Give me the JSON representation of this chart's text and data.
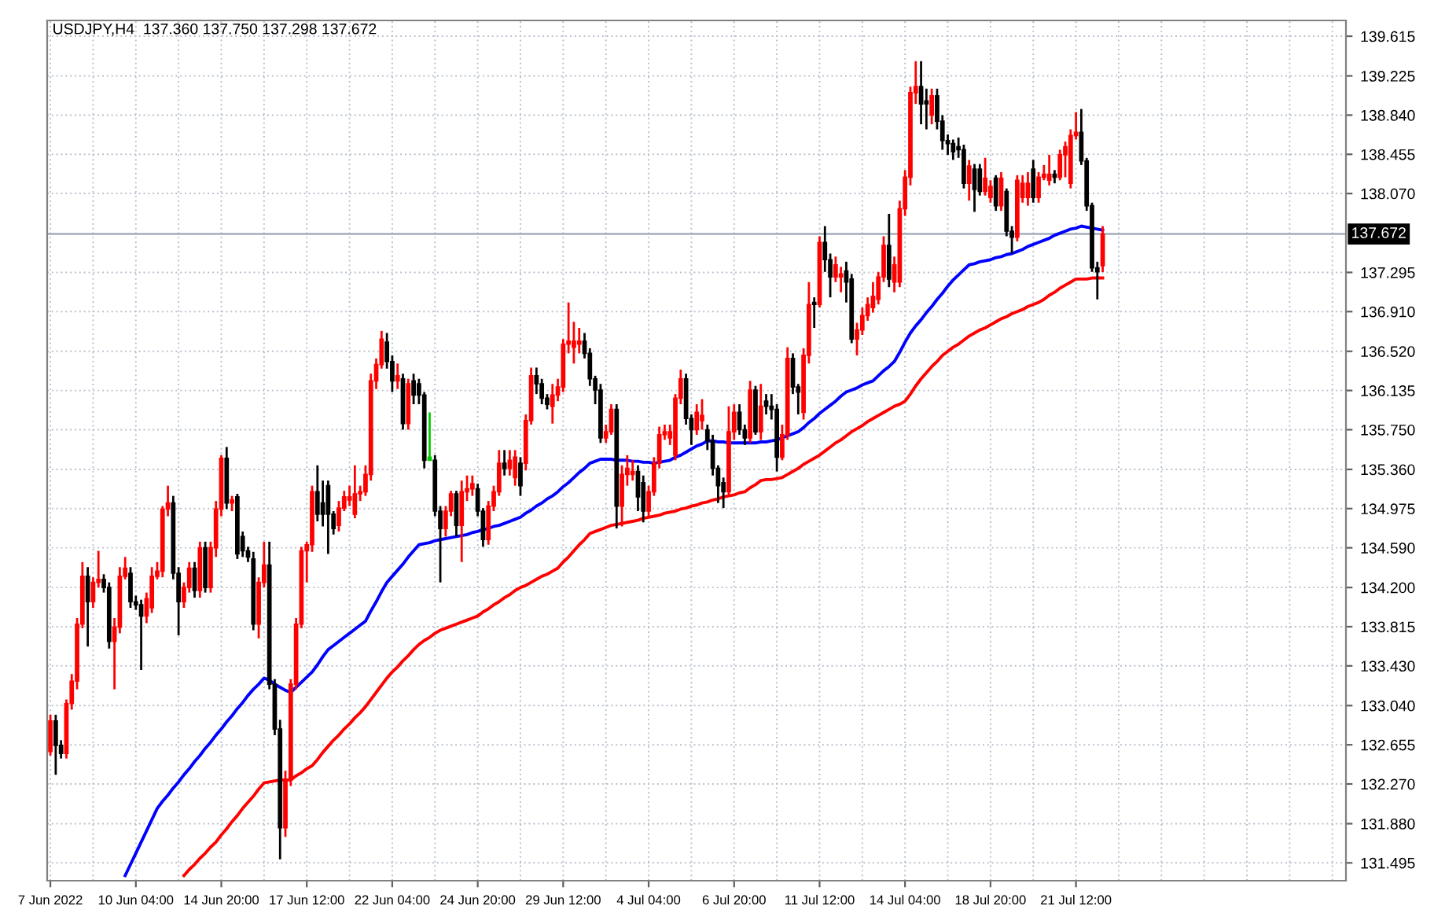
{
  "chart_data": {
    "type": "candlestick",
    "title": "USDJPY,H4  137.360 137.750 137.298 137.672",
    "categories": [
      "7 Jun 2022",
      null,
      null,
      null,
      null,
      null,
      null,
      null,
      null,
      null,
      null,
      null,
      null,
      null,
      null,
      null,
      "10 Jun 04:00",
      null,
      null,
      null,
      null,
      null,
      null,
      null,
      null,
      null,
      null,
      null,
      null,
      null,
      null,
      null,
      "14 Jun 20:00",
      null,
      null,
      null,
      null,
      null,
      null,
      null,
      null,
      null,
      null,
      null,
      null,
      null,
      null,
      null,
      "17 Jun 12:00",
      null,
      null,
      null,
      null,
      null,
      null,
      null,
      null,
      null,
      null,
      null,
      null,
      null,
      null,
      null,
      "22 Jun 04:00",
      null,
      null,
      null,
      null,
      null,
      null,
      null,
      null,
      null,
      null,
      null,
      null,
      null,
      null,
      null,
      "24 Jun 20:00",
      null,
      null,
      null,
      null,
      null,
      null,
      null,
      null,
      null,
      null,
      null,
      null,
      null,
      null,
      null,
      "29 Jun 12:00",
      null,
      null,
      null,
      null,
      null,
      null,
      null,
      null,
      null,
      null,
      null,
      null,
      null,
      null,
      null,
      "4 Jul 04:00",
      null,
      null,
      null,
      null,
      null,
      null,
      null,
      null,
      null,
      null,
      null,
      null,
      null,
      null,
      null,
      "6 Jul 20:00",
      null,
      null,
      null,
      null,
      null,
      null,
      null,
      null,
      null,
      null,
      null,
      null,
      null,
      null,
      null,
      "11 Jul 12:00",
      null,
      null,
      null,
      null,
      null,
      null,
      null,
      null,
      null,
      null,
      null,
      null,
      null,
      null,
      null,
      "14 Jul 04:00",
      null,
      null,
      null,
      null,
      null,
      null,
      null,
      null,
      null,
      null,
      null,
      null,
      null,
      null,
      null,
      "18 Jul 20:00",
      null,
      null,
      null,
      null,
      null,
      null,
      null,
      null,
      null,
      null,
      null,
      null,
      null,
      null,
      null,
      "21 Jul 12:00",
      null,
      null,
      null,
      null,
      null
    ],
    "ohlc": [
      [
        132.59,
        132.95,
        132.55,
        132.89
      ],
      [
        132.89,
        132.95,
        132.36,
        132.65
      ],
      [
        132.65,
        132.7,
        132.52,
        132.57
      ],
      [
        132.57,
        133.1,
        132.52,
        133.06
      ],
      [
        133.06,
        133.35,
        133.0,
        133.28
      ],
      [
        133.28,
        133.9,
        133.2,
        133.84
      ],
      [
        133.84,
        134.45,
        133.8,
        134.31
      ],
      [
        134.31,
        134.4,
        133.62,
        134.06
      ],
      [
        134.06,
        134.3,
        134.0,
        134.25
      ],
      [
        134.25,
        134.56,
        134.2,
        134.28
      ],
      [
        134.28,
        134.33,
        134.15,
        134.2
      ],
      [
        134.2,
        134.25,
        133.6,
        133.67
      ],
      [
        133.67,
        133.9,
        133.2,
        133.81
      ],
      [
        133.81,
        134.4,
        133.75,
        134.31
      ],
      [
        134.31,
        134.5,
        134.28,
        134.39
      ],
      [
        134.34,
        134.4,
        134.0,
        134.06
      ],
      [
        134.06,
        134.12,
        133.98,
        134.03
      ],
      [
        134.03,
        134.08,
        133.39,
        133.92
      ],
      [
        133.92,
        134.15,
        133.85,
        134.09
      ],
      [
        134.0,
        134.4,
        133.95,
        134.31
      ],
      [
        134.31,
        134.45,
        134.28,
        134.36
      ],
      [
        134.36,
        135.0,
        134.3,
        134.97
      ],
      [
        134.97,
        135.2,
        134.9,
        135.03
      ],
      [
        135.03,
        135.1,
        134.28,
        134.34
      ],
      [
        134.34,
        134.4,
        133.73,
        134.06
      ],
      [
        134.06,
        134.25,
        134.0,
        134.2
      ],
      [
        134.2,
        134.45,
        134.15,
        134.39
      ],
      [
        134.39,
        134.45,
        134.1,
        134.17
      ],
      [
        134.17,
        134.65,
        134.1,
        134.59
      ],
      [
        134.59,
        134.65,
        134.15,
        134.2
      ],
      [
        134.2,
        134.65,
        134.15,
        134.59
      ],
      [
        134.59,
        135.05,
        134.5,
        134.97
      ],
      [
        134.97,
        135.5,
        134.9,
        135.47
      ],
      [
        135.47,
        135.58,
        134.97,
        135.03
      ],
      [
        135.03,
        135.1,
        134.95,
        135.06
      ],
      [
        135.09,
        135.12,
        134.48,
        134.53
      ],
      [
        134.7,
        134.75,
        134.5,
        134.56
      ],
      [
        134.56,
        134.6,
        134.45,
        134.5
      ],
      [
        134.48,
        134.55,
        133.78,
        133.84
      ],
      [
        133.84,
        134.3,
        133.7,
        134.25
      ],
      [
        134.25,
        134.65,
        134.2,
        134.42
      ],
      [
        134.42,
        134.65,
        133.2,
        133.25
      ],
      [
        133.25,
        133.3,
        132.75,
        132.81
      ],
      [
        132.81,
        132.9,
        131.53,
        131.84
      ],
      [
        131.84,
        132.4,
        131.75,
        132.31
      ],
      [
        132.31,
        133.3,
        132.25,
        133.25
      ],
      [
        133.25,
        133.9,
        133.2,
        133.84
      ],
      [
        133.84,
        134.6,
        133.8,
        134.56
      ],
      [
        134.56,
        134.65,
        134.25,
        134.62
      ],
      [
        134.62,
        135.2,
        134.55,
        135.14
      ],
      [
        135.14,
        135.4,
        134.85,
        134.92
      ],
      [
        135.03,
        135.25,
        134.8,
        134.92
      ],
      [
        135.2,
        135.25,
        134.53,
        134.92
      ],
      [
        134.92,
        134.95,
        134.72,
        134.78
      ],
      [
        134.81,
        135.05,
        134.75,
        134.98
      ],
      [
        134.98,
        135.15,
        134.95,
        135.09
      ],
      [
        135.06,
        135.2,
        135.0,
        135.09
      ],
      [
        134.92,
        135.4,
        134.88,
        135.12
      ],
      [
        135.12,
        135.2,
        135.05,
        135.14
      ],
      [
        135.14,
        135.4,
        135.1,
        135.31
      ],
      [
        135.31,
        136.3,
        135.25,
        136.23
      ],
      [
        136.23,
        136.45,
        136.15,
        136.39
      ],
      [
        136.39,
        136.72,
        136.35,
        136.64
      ],
      [
        136.61,
        136.7,
        136.35,
        136.42
      ],
      [
        136.42,
        136.48,
        136.12,
        136.23
      ],
      [
        136.23,
        136.4,
        136.15,
        136.28
      ],
      [
        136.25,
        136.3,
        135.75,
        135.81
      ],
      [
        135.81,
        136.25,
        135.75,
        136.2
      ],
      [
        136.23,
        136.3,
        136.0,
        136.09
      ],
      [
        136.2,
        136.25,
        136.0,
        136.09
      ],
      [
        136.09,
        136.12,
        135.37,
        135.45
      ],
      [
        135.45,
        135.92,
        135.45,
        135.48
      ],
      [
        135.45,
        135.5,
        134.9,
        134.95
      ],
      [
        134.95,
        135.0,
        134.25,
        134.78
      ],
      [
        134.78,
        135.0,
        134.7,
        134.95
      ],
      [
        134.95,
        135.15,
        134.9,
        135.12
      ],
      [
        135.12,
        135.15,
        134.7,
        134.81
      ],
      [
        134.81,
        135.25,
        134.45,
        135.14
      ],
      [
        135.14,
        135.3,
        135.05,
        135.17
      ],
      [
        135.17,
        135.3,
        135.1,
        135.22
      ],
      [
        135.17,
        135.22,
        134.9,
        134.95
      ],
      [
        134.95,
        134.98,
        134.6,
        134.67
      ],
      [
        134.67,
        135.05,
        134.62,
        135.0
      ],
      [
        135.0,
        135.2,
        134.95,
        135.14
      ],
      [
        135.14,
        135.55,
        135.1,
        135.42
      ],
      [
        135.42,
        135.55,
        135.3,
        135.37
      ],
      [
        135.37,
        135.55,
        135.3,
        135.45
      ],
      [
        135.28,
        135.55,
        135.2,
        135.48
      ],
      [
        135.42,
        135.48,
        135.1,
        135.2
      ],
      [
        135.42,
        135.9,
        135.35,
        135.84
      ],
      [
        135.84,
        136.36,
        135.8,
        136.28
      ],
      [
        136.28,
        136.36,
        136.1,
        136.2
      ],
      [
        136.2,
        136.25,
        136.0,
        136.06
      ],
      [
        136.06,
        136.1,
        135.95,
        136.0
      ],
      [
        135.98,
        136.2,
        135.81,
        136.09
      ],
      [
        136.09,
        136.25,
        136.03,
        136.17
      ],
      [
        136.17,
        136.64,
        136.12,
        136.59
      ],
      [
        136.59,
        137.0,
        136.5,
        136.62
      ],
      [
        136.56,
        136.81,
        136.4,
        136.62
      ],
      [
        136.59,
        136.75,
        136.5,
        136.62
      ],
      [
        136.62,
        136.7,
        136.45,
        136.5
      ],
      [
        136.5,
        136.55,
        136.18,
        136.25
      ],
      [
        136.25,
        136.28,
        136.0,
        136.14
      ],
      [
        136.14,
        136.2,
        135.62,
        135.67
      ],
      [
        135.67,
        135.8,
        135.62,
        135.73
      ],
      [
        135.73,
        136.0,
        135.7,
        135.95
      ],
      [
        135.95,
        136.0,
        134.78,
        135.0
      ],
      [
        135.0,
        135.4,
        134.8,
        135.31
      ],
      [
        135.31,
        135.5,
        135.2,
        135.37
      ],
      [
        135.31,
        135.45,
        135.25,
        135.34
      ],
      [
        135.34,
        135.4,
        134.95,
        135.09
      ],
      [
        135.23,
        135.3,
        134.84,
        134.95
      ],
      [
        134.95,
        135.2,
        134.9,
        135.14
      ],
      [
        135.14,
        135.48,
        135.1,
        135.42
      ],
      [
        135.42,
        135.78,
        135.37,
        135.7
      ],
      [
        135.7,
        135.8,
        135.65,
        135.73
      ],
      [
        135.67,
        135.8,
        135.6,
        135.73
      ],
      [
        135.5,
        136.1,
        135.45,
        136.06
      ],
      [
        136.06,
        136.34,
        136.0,
        136.25
      ],
      [
        136.25,
        136.3,
        135.8,
        135.86
      ],
      [
        135.86,
        135.9,
        135.6,
        135.75
      ],
      [
        135.75,
        136.0,
        135.7,
        135.92
      ],
      [
        135.84,
        136.05,
        135.75,
        135.89
      ],
      [
        135.75,
        135.8,
        135.55,
        135.64
      ],
      [
        135.64,
        135.7,
        135.3,
        135.37
      ],
      [
        135.37,
        135.4,
        135.03,
        135.2
      ],
      [
        135.23,
        135.28,
        134.98,
        135.14
      ],
      [
        135.14,
        135.98,
        135.1,
        135.73
      ],
      [
        135.73,
        136.0,
        135.65,
        135.92
      ],
      [
        135.92,
        136.0,
        135.7,
        135.75
      ],
      [
        135.75,
        135.8,
        135.6,
        135.67
      ],
      [
        135.67,
        136.23,
        135.62,
        136.14
      ],
      [
        136.14,
        136.18,
        135.7,
        135.73
      ],
      [
        135.73,
        136.2,
        135.65,
        135.98
      ],
      [
        136.03,
        136.1,
        135.9,
        135.98
      ],
      [
        135.98,
        136.1,
        135.85,
        135.95
      ],
      [
        135.95,
        136.0,
        135.34,
        135.48
      ],
      [
        135.48,
        135.8,
        135.45,
        135.7
      ],
      [
        135.7,
        136.56,
        135.65,
        136.45
      ],
      [
        136.45,
        136.5,
        136.1,
        136.17
      ],
      [
        136.17,
        136.2,
        135.9,
        136.12
      ],
      [
        135.92,
        136.55,
        135.85,
        136.48
      ],
      [
        136.48,
        137.2,
        136.4,
        136.98
      ],
      [
        137.0,
        137.05,
        136.75,
        136.98
      ],
      [
        136.98,
        137.65,
        136.95,
        137.59
      ],
      [
        137.59,
        137.75,
        137.3,
        137.42
      ],
      [
        137.42,
        137.48,
        137.05,
        137.25
      ],
      [
        137.25,
        137.45,
        137.2,
        137.37
      ],
      [
        137.25,
        137.35,
        137.1,
        137.28
      ],
      [
        137.31,
        137.4,
        137.0,
        137.2
      ],
      [
        137.23,
        137.28,
        136.6,
        136.64
      ],
      [
        136.64,
        136.8,
        136.48,
        136.73
      ],
      [
        136.73,
        136.95,
        136.68,
        136.87
      ],
      [
        136.87,
        137.05,
        136.82,
        136.98
      ],
      [
        136.95,
        137.2,
        136.9,
        137.06
      ],
      [
        137.03,
        137.3,
        136.98,
        137.25
      ],
      [
        137.25,
        137.65,
        137.2,
        137.56
      ],
      [
        137.56,
        137.87,
        137.15,
        137.23
      ],
      [
        137.2,
        137.45,
        137.1,
        137.37
      ],
      [
        137.2,
        138.0,
        137.15,
        137.92
      ],
      [
        137.92,
        138.3,
        137.85,
        138.23
      ],
      [
        138.23,
        139.12,
        138.15,
        139.06
      ],
      [
        139.06,
        139.37,
        138.95,
        139.12
      ],
      [
        139.12,
        139.37,
        138.75,
        138.95
      ],
      [
        138.98,
        139.1,
        138.7,
        138.95
      ],
      [
        138.84,
        139.1,
        138.75,
        139.03
      ],
      [
        139.03,
        139.1,
        138.7,
        138.78
      ],
      [
        138.78,
        138.84,
        138.5,
        138.59
      ],
      [
        138.59,
        138.65,
        138.45,
        138.56
      ],
      [
        138.56,
        138.6,
        138.4,
        138.48
      ],
      [
        138.53,
        138.62,
        138.42,
        138.5
      ],
      [
        138.5,
        138.55,
        138.12,
        138.17
      ],
      [
        138.17,
        138.4,
        138.0,
        138.34
      ],
      [
        138.31,
        138.36,
        137.89,
        138.11
      ],
      [
        138.31,
        138.36,
        138.05,
        138.09
      ],
      [
        138.09,
        138.42,
        138.05,
        138.22
      ],
      [
        138.03,
        138.2,
        137.98,
        138.14
      ],
      [
        138.22,
        138.25,
        137.9,
        137.95
      ],
      [
        137.95,
        138.28,
        137.9,
        138.22
      ],
      [
        138.09,
        138.12,
        137.65,
        137.7
      ],
      [
        137.7,
        137.75,
        137.48,
        137.64
      ],
      [
        137.64,
        138.25,
        137.6,
        138.2
      ],
      [
        138.03,
        138.25,
        137.98,
        138.17
      ],
      [
        138.03,
        138.28,
        137.95,
        138.17
      ],
      [
        138.31,
        138.4,
        137.98,
        138.03
      ],
      [
        138.03,
        138.28,
        137.98,
        138.23
      ],
      [
        138.23,
        138.35,
        138.2,
        138.26
      ],
      [
        138.2,
        138.45,
        138.15,
        138.26
      ],
      [
        138.26,
        138.3,
        138.17,
        138.23
      ],
      [
        138.23,
        138.5,
        138.2,
        138.45
      ],
      [
        138.45,
        138.58,
        138.23,
        138.53
      ],
      [
        138.17,
        138.7,
        138.12,
        138.64
      ],
      [
        138.64,
        138.87,
        138.6,
        138.67
      ],
      [
        138.67,
        138.9,
        138.35,
        138.39
      ],
      [
        138.39,
        138.42,
        137.9,
        137.95
      ],
      [
        137.95,
        137.98,
        137.3,
        137.34
      ],
      [
        137.34,
        137.4,
        137.03,
        137.3
      ],
      [
        137.36,
        137.75,
        137.298,
        137.672
      ]
    ],
    "colors": [
      "#ff0000",
      "#000000",
      "#000000",
      "#ff0000",
      "#ff0000",
      "#ff0000",
      "#ff0000",
      "#000000",
      "#ff0000",
      "#ff0000",
      "#000000",
      "#000000",
      "#ff0000",
      "#ff0000",
      "#ff0000",
      "#000000",
      "#000000",
      "#000000",
      "#ff0000",
      "#ff0000",
      "#ff0000",
      "#ff0000",
      "#ff0000",
      "#000000",
      "#000000",
      "#ff0000",
      "#ff0000",
      "#000000",
      "#ff0000",
      "#000000",
      "#ff0000",
      "#ff0000",
      "#ff0000",
      "#000000",
      "#ff0000",
      "#000000",
      "#000000",
      "#000000",
      "#000000",
      "#ff0000",
      "#ff0000",
      "#000000",
      "#000000",
      "#000000",
      "#ff0000",
      "#ff0000",
      "#ff0000",
      "#ff0000",
      "#ff0000",
      "#ff0000",
      "#000000",
      "#000000",
      "#000000",
      "#000000",
      "#ff0000",
      "#ff0000",
      "#ff0000",
      "#ff0000",
      "#ff0000",
      "#ff0000",
      "#ff0000",
      "#ff0000",
      "#ff0000",
      "#000000",
      "#000000",
      "#ff0000",
      "#000000",
      "#ff0000",
      "#000000",
      "#000000",
      "#000000",
      "#00cc00",
      "#000000",
      "#000000",
      "#ff0000",
      "#ff0000",
      "#000000",
      "#ff0000",
      "#ff0000",
      "#ff0000",
      "#000000",
      "#000000",
      "#ff0000",
      "#ff0000",
      "#ff0000",
      "#000000",
      "#ff0000",
      "#ff0000",
      "#000000",
      "#ff0000",
      "#ff0000",
      "#000000",
      "#000000",
      "#000000",
      "#ff0000",
      "#ff0000",
      "#ff0000",
      "#ff0000",
      "#ff0000",
      "#ff0000",
      "#000000",
      "#000000",
      "#000000",
      "#000000",
      "#ff0000",
      "#ff0000",
      "#000000",
      "#ff0000",
      "#ff0000",
      "#ff0000",
      "#000000",
      "#000000",
      "#ff0000",
      "#ff0000",
      "#ff0000",
      "#ff0000",
      "#ff0000",
      "#ff0000",
      "#ff0000",
      "#000000",
      "#000000",
      "#ff0000",
      "#ff0000",
      "#000000",
      "#000000",
      "#000000",
      "#000000",
      "#ff0000",
      "#ff0000",
      "#000000",
      "#000000",
      "#ff0000",
      "#000000",
      "#ff0000",
      "#000000",
      "#000000",
      "#000000",
      "#ff0000",
      "#ff0000",
      "#000000",
      "#000000",
      "#ff0000",
      "#ff0000",
      "#000000",
      "#ff0000",
      "#000000",
      "#000000",
      "#ff0000",
      "#ff0000",
      "#000000",
      "#000000",
      "#ff0000",
      "#ff0000",
      "#ff0000",
      "#ff0000",
      "#ff0000",
      "#ff0000",
      "#000000",
      "#ff0000",
      "#ff0000",
      "#ff0000",
      "#ff0000",
      "#ff0000",
      "#000000",
      "#000000",
      "#ff0000",
      "#000000",
      "#000000",
      "#000000",
      "#000000",
      "#000000",
      "#000000",
      "#ff0000",
      "#000000",
      "#000000",
      "#ff0000",
      "#ff0000",
      "#000000",
      "#ff0000",
      "#000000",
      "#000000",
      "#ff0000",
      "#ff0000",
      "#ff0000",
      "#000000",
      "#ff0000",
      "#ff0000",
      "#ff0000",
      "#000000",
      "#ff0000",
      "#ff0000",
      "#ff0000",
      "#ff0000",
      "#000000",
      "#000000",
      "#000000",
      "#000000",
      "#ff0000"
    ],
    "series": [
      {
        "type": "line",
        "color": "#0000ff",
        "values": [
          null,
          null,
          null,
          null,
          null,
          null,
          null,
          null,
          null,
          null,
          null,
          null,
          null,
          null,
          131.37,
          131.48,
          131.59,
          131.7,
          131.81,
          131.92,
          132.03,
          132.1,
          132.16,
          132.23,
          132.29,
          132.36,
          132.42,
          132.49,
          132.55,
          132.62,
          132.68,
          132.75,
          132.81,
          132.88,
          132.94,
          133.01,
          133.07,
          133.14,
          133.2,
          133.25,
          133.31,
          133.29,
          133.25,
          133.22,
          133.19,
          133.17,
          133.22,
          133.27,
          133.32,
          133.37,
          133.44,
          133.52,
          133.59,
          133.63,
          133.67,
          133.71,
          133.75,
          133.79,
          133.83,
          133.87,
          133.97,
          134.06,
          134.16,
          134.25,
          134.31,
          134.37,
          134.43,
          134.5,
          134.56,
          134.62,
          134.63,
          134.64,
          134.66,
          134.67,
          134.68,
          134.69,
          134.7,
          134.71,
          134.72,
          134.74,
          134.75,
          134.77,
          134.78,
          134.8,
          134.81,
          134.83,
          134.85,
          134.87,
          134.89,
          134.93,
          134.96,
          135.0,
          135.03,
          135.07,
          135.1,
          135.14,
          135.19,
          135.23,
          135.28,
          135.33,
          135.37,
          135.42,
          135.44,
          135.46,
          135.46,
          135.46,
          135.45,
          135.45,
          135.45,
          135.44,
          135.44,
          135.43,
          135.43,
          135.42,
          135.43,
          135.44,
          135.45,
          135.48,
          135.5,
          135.53,
          135.56,
          135.59,
          135.61,
          135.64,
          135.64,
          135.63,
          135.63,
          135.62,
          135.62,
          135.62,
          135.62,
          135.62,
          135.62,
          135.63,
          135.63,
          135.64,
          135.65,
          135.67,
          135.69,
          135.71,
          135.73,
          135.77,
          135.82,
          135.86,
          135.91,
          135.95,
          135.99,
          136.03,
          136.08,
          136.12,
          136.14,
          136.16,
          136.19,
          136.21,
          136.23,
          136.28,
          136.33,
          136.37,
          136.42,
          136.51,
          136.61,
          136.7,
          136.77,
          136.83,
          136.9,
          136.96,
          137.03,
          137.09,
          137.16,
          137.22,
          137.27,
          137.32,
          137.37,
          137.38,
          137.4,
          137.41,
          137.42,
          137.44,
          137.45,
          137.47,
          137.48,
          137.5,
          137.52,
          137.55,
          137.57,
          137.59,
          137.61,
          137.63,
          137.66,
          137.68,
          137.7,
          137.72,
          137.73,
          137.75,
          137.74,
          137.73,
          137.72,
          137.71
        ]
      },
      {
        "type": "line",
        "color": "#ff0000",
        "values": [
          null,
          null,
          null,
          null,
          null,
          null,
          null,
          null,
          null,
          null,
          null,
          null,
          null,
          null,
          null,
          null,
          null,
          null,
          null,
          null,
          null,
          null,
          null,
          null,
          null,
          131.37,
          131.43,
          131.48,
          131.54,
          131.59,
          131.65,
          131.7,
          131.77,
          131.83,
          131.9,
          131.96,
          132.03,
          132.09,
          132.15,
          132.22,
          132.28,
          132.29,
          132.3,
          132.31,
          132.31,
          132.31,
          132.35,
          132.38,
          132.42,
          132.45,
          132.51,
          132.58,
          132.64,
          132.7,
          132.75,
          132.81,
          132.86,
          132.92,
          132.97,
          133.03,
          133.1,
          133.17,
          133.24,
          133.31,
          133.37,
          133.42,
          133.48,
          133.53,
          133.59,
          133.64,
          133.68,
          133.71,
          133.75,
          133.78,
          133.8,
          133.82,
          133.84,
          133.86,
          133.88,
          133.9,
          133.92,
          133.96,
          133.99,
          134.03,
          134.06,
          134.1,
          134.13,
          134.17,
          134.2,
          134.22,
          134.25,
          134.28,
          134.31,
          134.33,
          134.36,
          134.39,
          134.45,
          134.5,
          134.56,
          134.62,
          134.67,
          134.73,
          134.75,
          134.77,
          134.79,
          134.81,
          134.82,
          134.83,
          134.84,
          134.85,
          134.86,
          134.88,
          134.89,
          134.9,
          134.91,
          134.93,
          134.94,
          134.95,
          134.97,
          134.98,
          135.0,
          135.01,
          135.03,
          135.04,
          135.06,
          135.07,
          135.09,
          135.1,
          135.11,
          135.13,
          135.14,
          135.18,
          135.21,
          135.25,
          135.26,
          135.26,
          135.27,
          135.28,
          135.31,
          135.34,
          135.37,
          135.41,
          135.44,
          135.47,
          135.5,
          135.54,
          135.58,
          135.62,
          135.65,
          135.69,
          135.73,
          135.76,
          135.79,
          135.83,
          135.86,
          135.89,
          135.92,
          135.95,
          135.98,
          136.0,
          136.03,
          136.1,
          136.18,
          136.25,
          136.31,
          136.37,
          136.42,
          136.48,
          136.52,
          136.56,
          136.59,
          136.63,
          136.67,
          136.7,
          136.73,
          136.75,
          136.78,
          136.81,
          136.84,
          136.86,
          136.89,
          136.91,
          136.93,
          136.96,
          136.98,
          137.0,
          137.03,
          137.07,
          137.1,
          137.14,
          137.17,
          137.2,
          137.23,
          137.23,
          137.23,
          137.24,
          137.24,
          137.24
        ]
      }
    ],
    "ylim": [
      131.32,
      139.77
    ],
    "yticks": [
      139.615,
      139.225,
      {
        "value": 138.84,
        "label": "138.840"
      },
      138.455,
      {
        "value": 138.07,
        "label": "138.070"
      },
      137.295,
      {
        "value": 136.91,
        "label": "136.910"
      },
      {
        "value": 136.52,
        "label": "136.520"
      },
      136.135,
      {
        "value": 135.75,
        "label": "135.750"
      },
      {
        "value": 135.36,
        "label": "135.360"
      },
      134.975,
      {
        "value": 134.59,
        "label": "134.590"
      },
      {
        "value": 134.2,
        "label": "134.200"
      },
      133.815,
      {
        "value": 133.43,
        "label": "133.430"
      },
      {
        "value": 133.04,
        "label": "133.040"
      },
      132.655,
      {
        "value": 132.27,
        "label": "132.270"
      },
      {
        "value": 131.88,
        "label": "131.880"
      },
      131.495
    ],
    "ref_lines": [
      {
        "axis": "y",
        "value": 137.672,
        "label": "137.672",
        "color": "#a3acbd"
      }
    ],
    "grid": true
  }
}
